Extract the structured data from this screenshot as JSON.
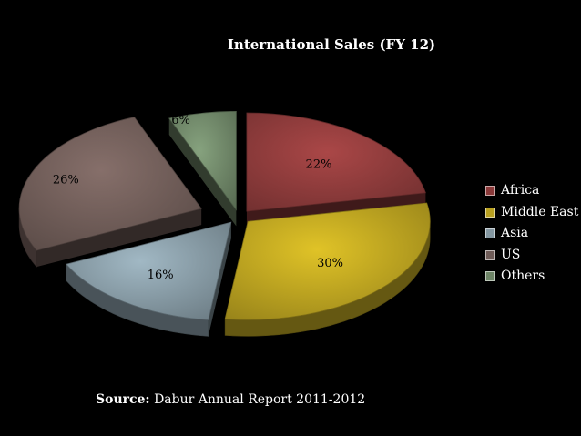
{
  "chart_data": {
    "type": "pie",
    "title": "International Sales (FY 12)",
    "slices": [
      {
        "name": "Africa",
        "value": 22,
        "label": "22%",
        "color": "#8B3A3A"
      },
      {
        "name": "Middle East",
        "value": 30,
        "label": "30%",
        "color": "#B8A020"
      },
      {
        "name": "Asia",
        "value": 16,
        "label": "16%",
        "color": "#8497A1"
      },
      {
        "name": "US",
        "value": 26,
        "label": "26%",
        "color": "#6E5B57"
      },
      {
        "name": "Others",
        "value": 6,
        "label": "6%",
        "color": "#6E8567"
      }
    ],
    "exploded": true,
    "style": "3d",
    "legend_position": "right"
  },
  "source": {
    "label": "Source:",
    "text": "Dabur Annual Report 2011-2012"
  }
}
